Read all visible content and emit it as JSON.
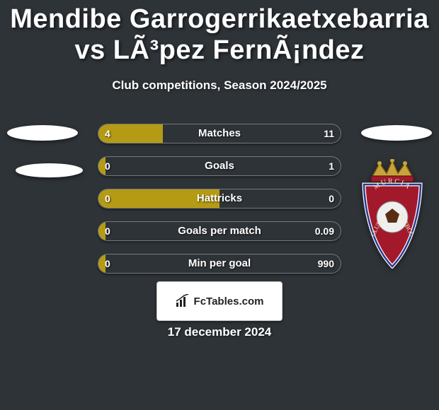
{
  "title": "Mendibe Garrogerrikaetxebarria vs LÃ³pez FernÃ¡ndez",
  "subtitle": "Club competitions, Season 2024/2025",
  "date": "17 december 2024",
  "footer_brand": "FcTables.com",
  "colors": {
    "background": "#2e3338",
    "left_fill": "#b59b14",
    "right_fill": "#2e3338",
    "track_border": "rgba(255,255,255,0.35)",
    "badge_red": "#a3192c",
    "badge_gold": "#c9a33a",
    "badge_blue": "#2b3a8f"
  },
  "stats": [
    {
      "label": "Matches",
      "left_val": "4",
      "right_val": "11",
      "left_pct": 26.7,
      "right_pct": 73.3
    },
    {
      "label": "Goals",
      "left_val": "0",
      "right_val": "1",
      "left_pct": 3,
      "right_pct": 97
    },
    {
      "label": "Hattricks",
      "left_val": "0",
      "right_val": "0",
      "left_pct": 50,
      "right_pct": 50
    },
    {
      "label": "Goals per match",
      "left_val": "0",
      "right_val": "0.09",
      "left_pct": 3,
      "right_pct": 97
    },
    {
      "label": "Min per goal",
      "left_val": "0",
      "right_val": "990",
      "left_pct": 3,
      "right_pct": 97
    }
  ]
}
